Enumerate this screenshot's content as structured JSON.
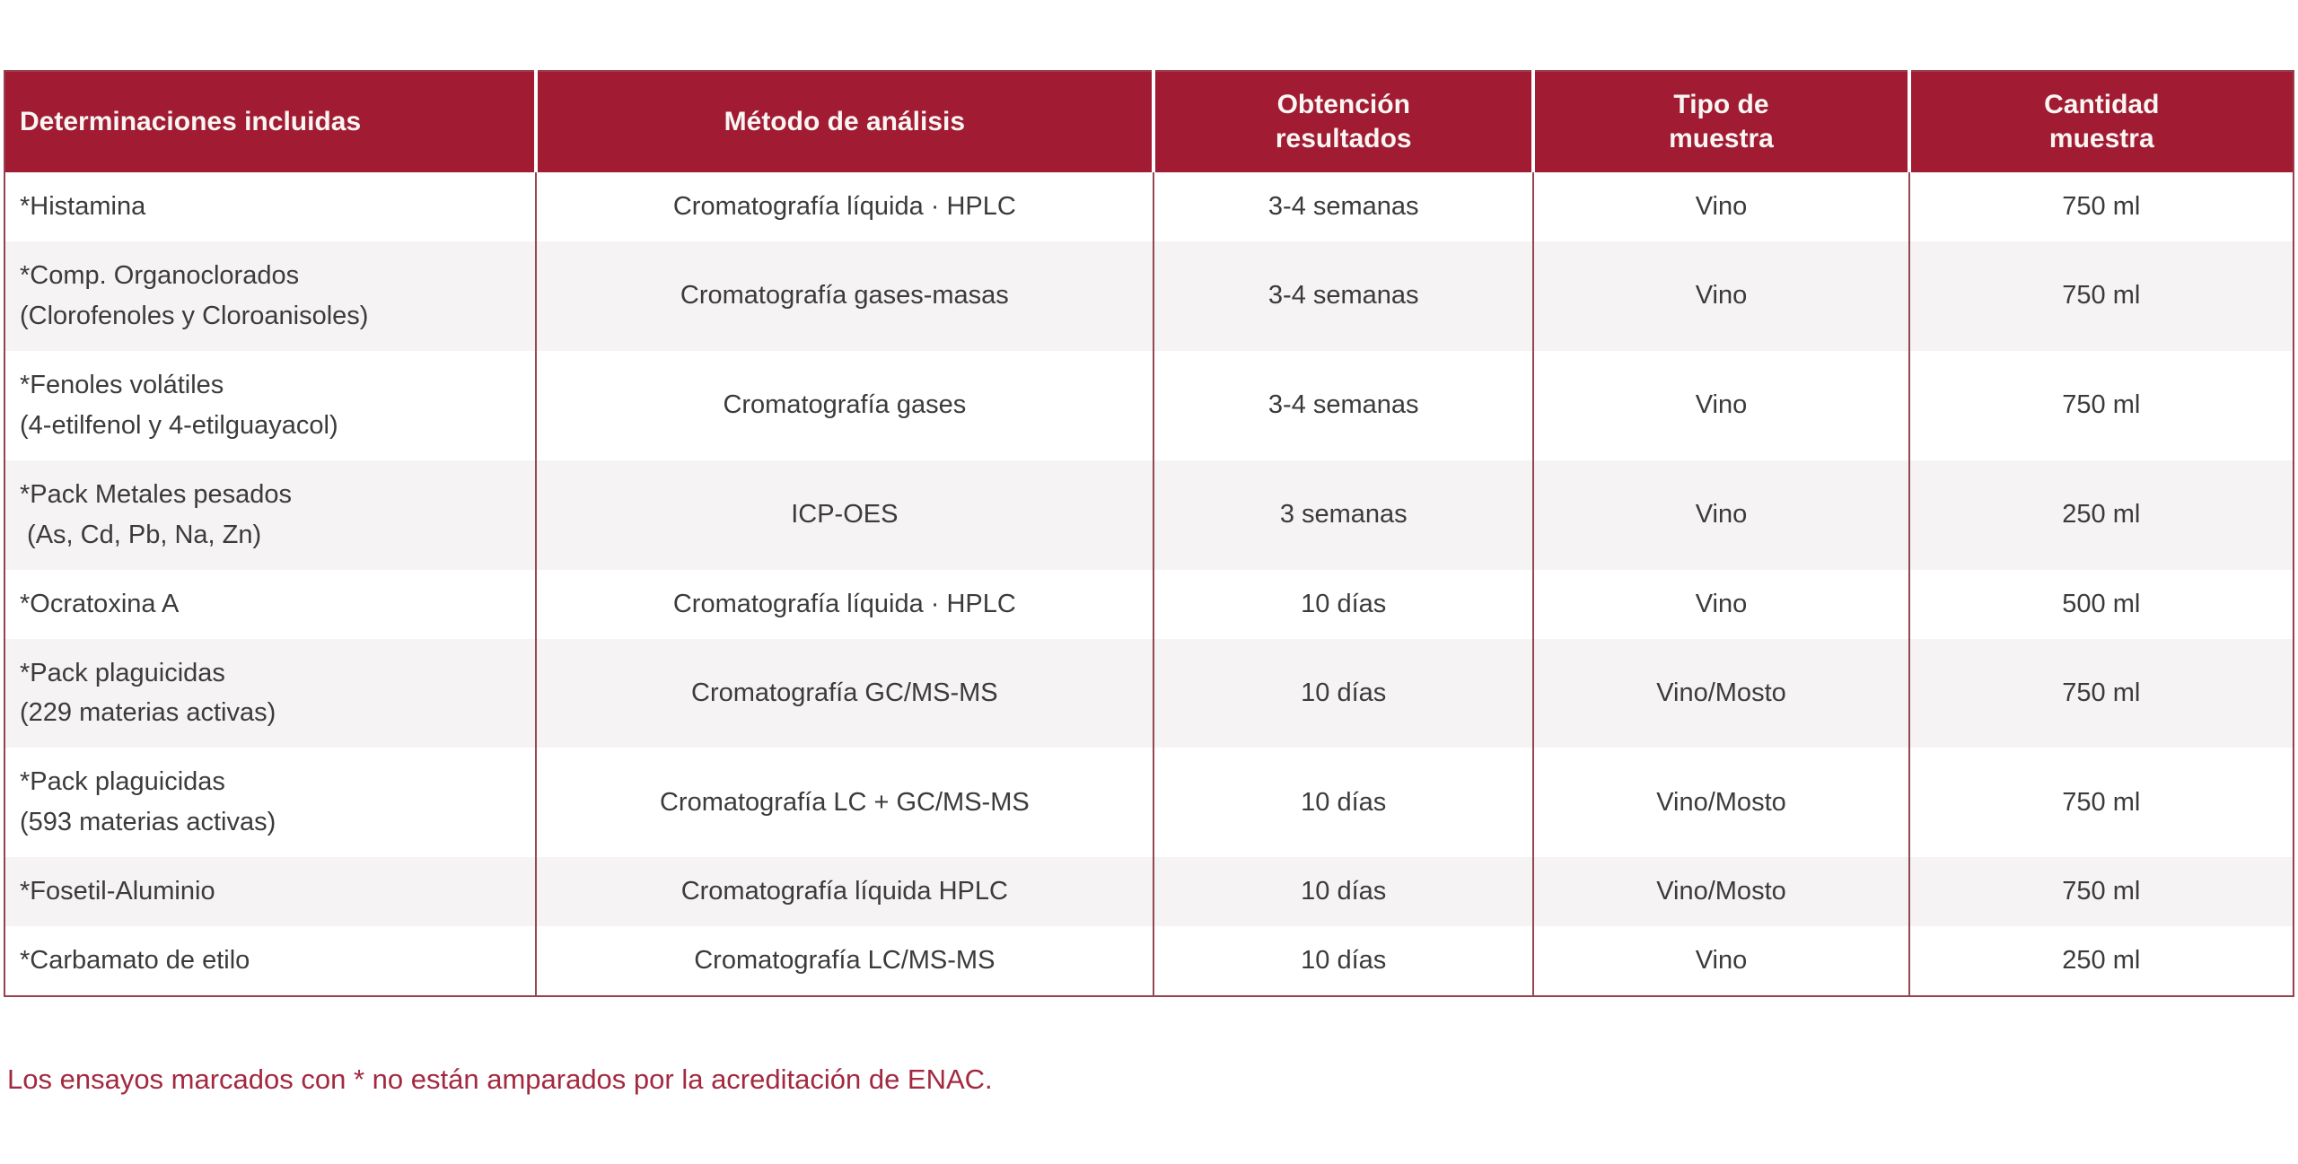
{
  "table": {
    "columns": [
      {
        "label": "Determinaciones incluidas",
        "align": "left"
      },
      {
        "label": "Método de análisis",
        "align": "center"
      },
      {
        "label": "Obtención\nresultados",
        "align": "center"
      },
      {
        "label": "Tipo de\nmuestra",
        "align": "center"
      },
      {
        "label": "Cantidad\nmuestra",
        "align": "center"
      }
    ],
    "column_widths_pct": [
      23.2,
      27.0,
      16.6,
      16.4,
      16.8
    ],
    "rows": [
      {
        "cells": [
          "*Histamina",
          "Cromatografía líquida · HPLC",
          "3-4 semanas",
          "Vino",
          "750 ml"
        ]
      },
      {
        "cells": [
          "*Comp. Organoclorados\n(Clorofenoles y Cloroanisoles)",
          "Cromatografía gases-masas",
          "3-4 semanas",
          "Vino",
          "750 ml"
        ]
      },
      {
        "cells": [
          "*Fenoles volátiles\n(4-etilfenol y 4-etilguayacol)",
          "Cromatografía gases",
          "3-4 semanas",
          "Vino",
          "750 ml"
        ]
      },
      {
        "cells": [
          "*Pack Metales pesados\n (As, Cd, Pb, Na, Zn)",
          "ICP-OES",
          "3 semanas",
          "Vino",
          "250 ml"
        ]
      },
      {
        "cells": [
          "*Ocratoxina A",
          "Cromatografía líquida · HPLC",
          "10 días",
          "Vino",
          "500 ml"
        ]
      },
      {
        "cells": [
          "*Pack plaguicidas\n(229 materias activas)",
          "Cromatografía GC/MS-MS",
          "10 días",
          "Vino/Mosto",
          "750 ml"
        ]
      },
      {
        "cells": [
          "*Pack plaguicidas\n(593 materias activas)",
          "Cromatografía LC + GC/MS-MS",
          "10 días",
          "Vino/Mosto",
          "750 ml"
        ]
      },
      {
        "cells": [
          "*Fosetil-Aluminio",
          "Cromatografía líquida HPLC",
          "10 días",
          "Vino/Mosto",
          "750 ml"
        ]
      },
      {
        "cells": [
          "*Carbamato de etilo",
          "Cromatografía LC/MS-MS",
          "10 días",
          "Vino",
          "250 ml"
        ]
      }
    ]
  },
  "footnote": {
    "text": "Los ensayos marcados con * no están amparados por la acreditación de ENAC."
  },
  "colors": {
    "header_bg": "#a11b33",
    "header_text": "#f8f6f3",
    "outer_border": "#99404f",
    "column_divider": "#964754",
    "row_alt_bg": "#f5f3f4",
    "body_text": "#3b3b3c",
    "footnote_text": "#a32940"
  }
}
